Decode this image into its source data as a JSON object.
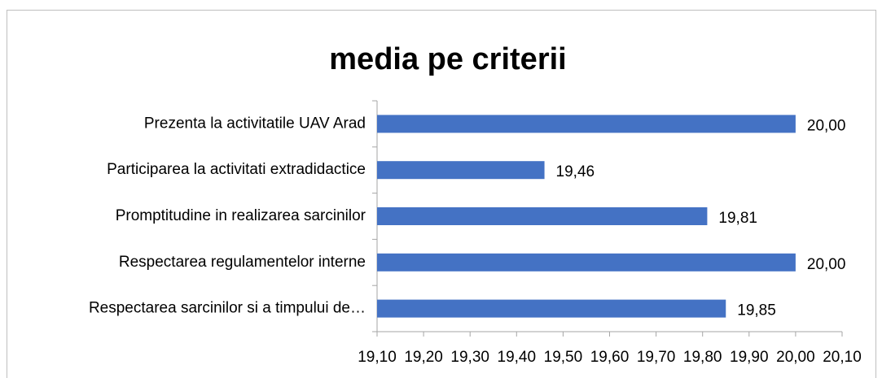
{
  "chart_data": {
    "type": "bar",
    "orientation": "horizontal",
    "title": "media pe criterii",
    "categories": [
      "Prezenta la activitatile UAV Arad",
      "Participarea la activitati extradidactice",
      "Promptitudine in realizarea sarcinilor",
      "Respectarea regulamentelor interne",
      "Respectarea sarcinilor si a timpului de…"
    ],
    "values": [
      20.0,
      19.46,
      19.81,
      20.0,
      19.85
    ],
    "value_labels": [
      "20,00",
      "19,46",
      "19,81",
      "20,00",
      "19,85"
    ],
    "color": "#4472c4",
    "xlim": [
      19.1,
      20.1
    ],
    "xticks": [
      {
        "value": 19.1,
        "label": "19,10"
      },
      {
        "value": 19.2,
        "label": "19,20"
      },
      {
        "value": 19.3,
        "label": "19,30"
      },
      {
        "value": 19.4,
        "label": "19,40"
      },
      {
        "value": 19.5,
        "label": "19,50"
      },
      {
        "value": 19.6,
        "label": "19,60"
      },
      {
        "value": 19.7,
        "label": "19,70"
      },
      {
        "value": 19.8,
        "label": "19,80"
      },
      {
        "value": 19.9,
        "label": "19,90"
      },
      {
        "value": 20.0,
        "label": "20,00"
      },
      {
        "value": 20.1,
        "label": "20,10"
      }
    ],
    "grid": false
  }
}
